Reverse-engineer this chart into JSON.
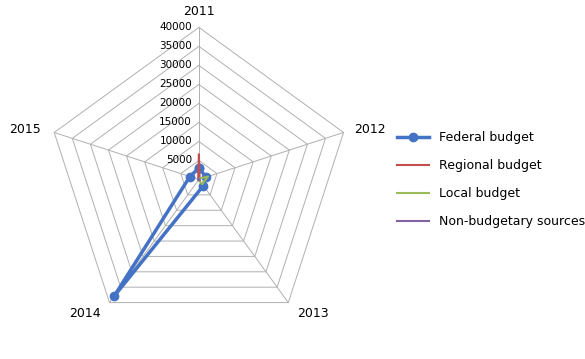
{
  "categories": [
    "2011",
    "2012",
    "2013",
    "2014",
    "2015"
  ],
  "rmax": 40000,
  "rticks": [
    5000,
    10000,
    15000,
    20000,
    25000,
    30000,
    35000,
    40000
  ],
  "series": [
    {
      "label": "Federal budget",
      "color": "#4472C4",
      "linewidth": 2.5,
      "marker": "o",
      "markersize": 6,
      "values": [
        3000,
        2000,
        2000,
        38000,
        2500
      ]
    },
    {
      "label": "Regional budget",
      "color": "#C0504D",
      "linewidth": 1.5,
      "marker": "none",
      "markersize": 4,
      "values": [
        6500,
        200,
        500,
        200,
        200
      ]
    },
    {
      "label": "Local budget",
      "color": "#9BBB59",
      "linewidth": 1.5,
      "marker": "none",
      "markersize": 4,
      "values": [
        200,
        2500,
        1500,
        200,
        200
      ]
    },
    {
      "label": "Non-budgetary sources",
      "color": "#8064A2",
      "linewidth": 1.5,
      "marker": "none",
      "markersize": 4,
      "values": [
        200,
        200,
        200,
        200,
        200
      ]
    }
  ],
  "background_color": "#FFFFFF",
  "grid_color": "#B0B0B0",
  "label_fontsize": 9,
  "tick_fontsize": 7.5,
  "legend_fontsize": 9
}
